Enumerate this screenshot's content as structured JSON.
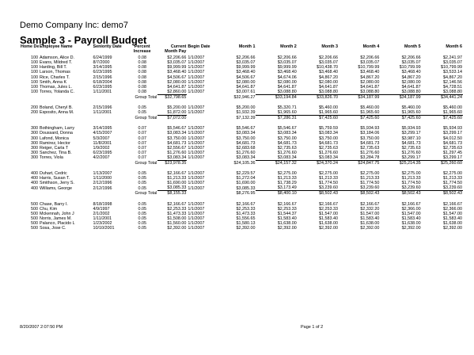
{
  "company": "Demo Company Inc: demo7",
  "report_title": "Sample 3 - Payroll Budget",
  "columns": [
    "Home Dept",
    "Employee Name",
    "Seniority Date",
    "Percent Increase",
    "Current Month Pay",
    "Begin Date",
    "Month 1",
    "Month 2",
    "Month 3",
    "Month 4",
    "Month 5",
    "Month 6"
  ],
  "groups": [
    {
      "rows": [
        [
          "100",
          "Adamson, Alice D.",
          "6/24/1999",
          "0.08",
          "$2,206.66",
          "1/1/2007",
          "$2,206.66",
          "$2,206.66",
          "$2,206.66",
          "$2,206.66",
          "$2,206.66",
          "$2,241.97"
        ],
        [
          "100",
          "Evans, Mildred T.",
          "8/7/2000",
          "0.08",
          "$3,035.07",
          "1/1/2007",
          "$3,035.07",
          "$3,035.07",
          "$3,035.07",
          "$3,035.07",
          "$3,035.07",
          "$3,035.07"
        ],
        [
          "100",
          "Harding, Bill T.",
          "3/14/1995",
          "0.08",
          "$9,999.99",
          "1/1/2007",
          "$9,999.99",
          "$9,999.99",
          "$10,438.70",
          "$10,799.99",
          "$10,799.99",
          "$10,799.99"
        ],
        [
          "100",
          "Larson, Thomas",
          "6/23/1995",
          "0.08",
          "$3,468.40",
          "1/1/2007",
          "$3,468.40",
          "$3,468.40",
          "$3,468.40",
          "$3,468.40",
          "$3,468.40",
          "$3,533.14"
        ],
        [
          "100",
          "Rice, Charles T.",
          "2/15/1996",
          "0.08",
          "$4,506.67",
          "1/1/2007",
          "$4,506.67",
          "$4,674.06",
          "$4,867.20",
          "$4,867.20",
          "$4,867.20",
          "$4,867.20"
        ],
        [
          "100",
          "Smith, Anna K",
          "6/18/2004",
          "0.08",
          "$2,080.00",
          "1/1/2007",
          "$2,080.00",
          "$2,080.00",
          "$2,080.00",
          "$2,080.00",
          "$2,080.00",
          "$2,146.56"
        ],
        [
          "100",
          "Thomas, Jules L.",
          "6/23/1995",
          "0.08",
          "$4,641.87",
          "1/1/2007",
          "$4,641.87",
          "$4,641.87",
          "$4,641.87",
          "$4,641.87",
          "$4,641.87",
          "$4,728.51"
        ],
        [
          "100",
          "Torres, Yolanda C.",
          "1/11/2001",
          "0.08",
          "$2,860.00",
          "1/1/2007",
          "$3,007.61",
          "$3,088.80",
          "$3,088.80",
          "$3,088.80",
          "$3,088.80",
          "$3,088.80"
        ]
      ],
      "total": [
        "$32,798.65",
        "$32,946.27",
        "$33,194.84",
        "$33,826.70",
        "$34,187.99",
        "$34,187.99",
        "$34,441.24"
      ]
    },
    {
      "rows": [
        [
          "200",
          "Boland, Cheryl B.",
          "2/15/1996",
          "0.05",
          "$5,200.00",
          "1/1/2007",
          "$5,200.00",
          "$5,320.71",
          "$5,460.00",
          "$5,460.00",
          "$5,460.00",
          "$5,460.00"
        ],
        [
          "200",
          "Esposito, Anna M.",
          "1/11/2001",
          "0.05",
          "$1,872.00",
          "1/1/2007",
          "$1,932.39",
          "$1,965.60",
          "$1,965.60",
          "$1,965.60",
          "$1,965.60",
          "$1,965.60"
        ]
      ],
      "total": [
        "$7,072.00",
        "$7,132.39",
        "$7,286.31",
        "$7,425.60",
        "$7,425.60",
        "$7,425.60",
        "$7,425.60"
      ]
    },
    {
      "rows": [
        [
          "300",
          "Bothingham, Larry",
          "3/14/1995",
          "0.07",
          "$5,546.67",
          "1/1/2007",
          "$5,546.67",
          "$5,546.67",
          "$5,759.59",
          "$5,934.93",
          "$5,934.93",
          "$5,934.93"
        ],
        [
          "300",
          "Doussard, Donna",
          "4/15/2007",
          "0.07",
          "$3,083.34",
          "1/1/2007",
          "$3,083.34",
          "$3,083.34",
          "$3,083.34",
          "$3,184.06",
          "$3,299.17",
          "$3,299.17"
        ],
        [
          "300",
          "Lafond, Monica",
          "5/3/2007",
          "0.07",
          "$3,750.00",
          "1/1/2007",
          "$3,750.00",
          "$3,750.00",
          "$3,750.00",
          "$3,750.00",
          "$3,987.10",
          "$4,012.50"
        ],
        [
          "300",
          "Ramirez, Hector",
          "11/8/2001",
          "0.07",
          "$4,681.73",
          "1/1/2007",
          "$4,681.73",
          "$4,681.73",
          "$4,681.73",
          "$4,681.73",
          "$4,681.73",
          "$4,681.73"
        ],
        [
          "300",
          "Reiger, Carla T",
          "1/9/2002",
          "0.07",
          "$2,556.67",
          "1/1/2007",
          "$2,683.68",
          "$2,735.63",
          "$2,735.63",
          "$2,735.63",
          "$2,735.63",
          "$2,735.63"
        ],
        [
          "300",
          "Sanchez, Tina B.",
          "6/23/1995",
          "0.07",
          "$1,276.60",
          "1/1/2007",
          "$1,276.60",
          "$1,276.60",
          "$1,276.60",
          "$1,276.60",
          "$1,276.60",
          "$1,297.45"
        ],
        [
          "300",
          "Torres, Viola",
          "4/2/2007",
          "0.07",
          "$3,083.34",
          "1/1/2007",
          "$3,083.34",
          "$3,083.34",
          "$3,083.34",
          "$3,284.78",
          "$3,299.17",
          "$3,299.17"
        ]
      ],
      "total": [
        "$23,978.35",
        "$24,105.36",
        "$24,157.32",
        "$24,370.24",
        "$24,847.75",
        "$25,214.35",
        "$25,260.60"
      ]
    },
    {
      "rows": [
        [
          "400",
          "Duhart, Cedric",
          "1/13/2007",
          "0.05",
          "$2,166.67",
          "1/1/2007",
          "$2,229.57",
          "$2,275.00",
          "$2,275.00",
          "$2,275.00",
          "$2,275.00",
          "$2,275.00"
        ],
        [
          "400",
          "Harris, Susan T.",
          "1/11/2000",
          "0.05",
          "$1,213.33",
          "1/1/2007",
          "$1,272.04",
          "$1,213.33",
          "$1,213.33",
          "$1,213.33",
          "$1,213.33",
          "$1,213.33"
        ],
        [
          "400",
          "Smithson, Jerry S.",
          "2/12/1996",
          "0.05",
          "$1,690.00",
          "1/1/2007",
          "$1,690.00",
          "$1,738.29",
          "$1,774.50",
          "$1,774.50",
          "$1,774.50",
          "$1,774.50"
        ],
        [
          "400",
          "Williams, George",
          "2/12/1996",
          "0.05",
          "$3,085.33",
          "1/1/2007",
          "$3,085.33",
          "$3,173.49",
          "$3,239.60",
          "$3,239.60",
          "$3,239.60",
          "$3,239.60"
        ]
      ],
      "total": [
        "$8,155.33",
        "$8,276.95",
        "$8,400.10",
        "$8,502.43",
        "$8,502.43",
        "$8,502.43",
        "$8,502.43"
      ]
    },
    {
      "rows": [
        [
          "500",
          "Chase, Barry I.",
          "8/18/1998",
          "0.05",
          "$2,166.67",
          "1/1/2007",
          "$2,166.67",
          "$2,166.67",
          "$2,166.67",
          "$2,166.67",
          "$2,166.67",
          "$2,166.67"
        ],
        [
          "500",
          "Chu, Kim",
          "4/9/1997",
          "0.05",
          "$2,253.33",
          "1/1/2007",
          "$2,253.33",
          "$2,253.33",
          "$2,253.33",
          "$2,332.20",
          "$2,366.00",
          "$2,366.00"
        ],
        [
          "500",
          "Mckennah, John J",
          "2/1/2002",
          "0.05",
          "$1,473.33",
          "1/1/2007",
          "$1,473.33",
          "$1,544.37",
          "$1,547.00",
          "$1,547.00",
          "$1,547.00",
          "$1,547.00"
        ],
        [
          "500",
          "Norris, James M.",
          "1/11/2001",
          "0.05",
          "$1,508.00",
          "1/1/2007",
          "$1,556.65",
          "$1,583.40",
          "$1,583.40",
          "$1,583.40",
          "$1,583.40",
          "$1,583.40"
        ],
        [
          "500",
          "Palanco, Placido L",
          "1/23/2002",
          "0.05",
          "$1,560.00",
          "1/1/2007",
          "$1,580.13",
          "$1,638.00",
          "$1,638.00",
          "$1,638.00",
          "$1,638.00",
          "$1,638.00"
        ],
        [
          "500",
          "Sosa, Jose C.",
          "10/10/2001",
          "0.05",
          "$2,392.00",
          "1/1/2007",
          "$2,392.00",
          "$2,392.00",
          "$2,392.00",
          "$2,392.00",
          "$2,392.00",
          "$2,392.00"
        ]
      ]
    }
  ],
  "group_total_label": "Group Total",
  "footer": {
    "timestamp": "8/20/2007 2:07:50 PM",
    "page": "Page 1 of 2"
  }
}
